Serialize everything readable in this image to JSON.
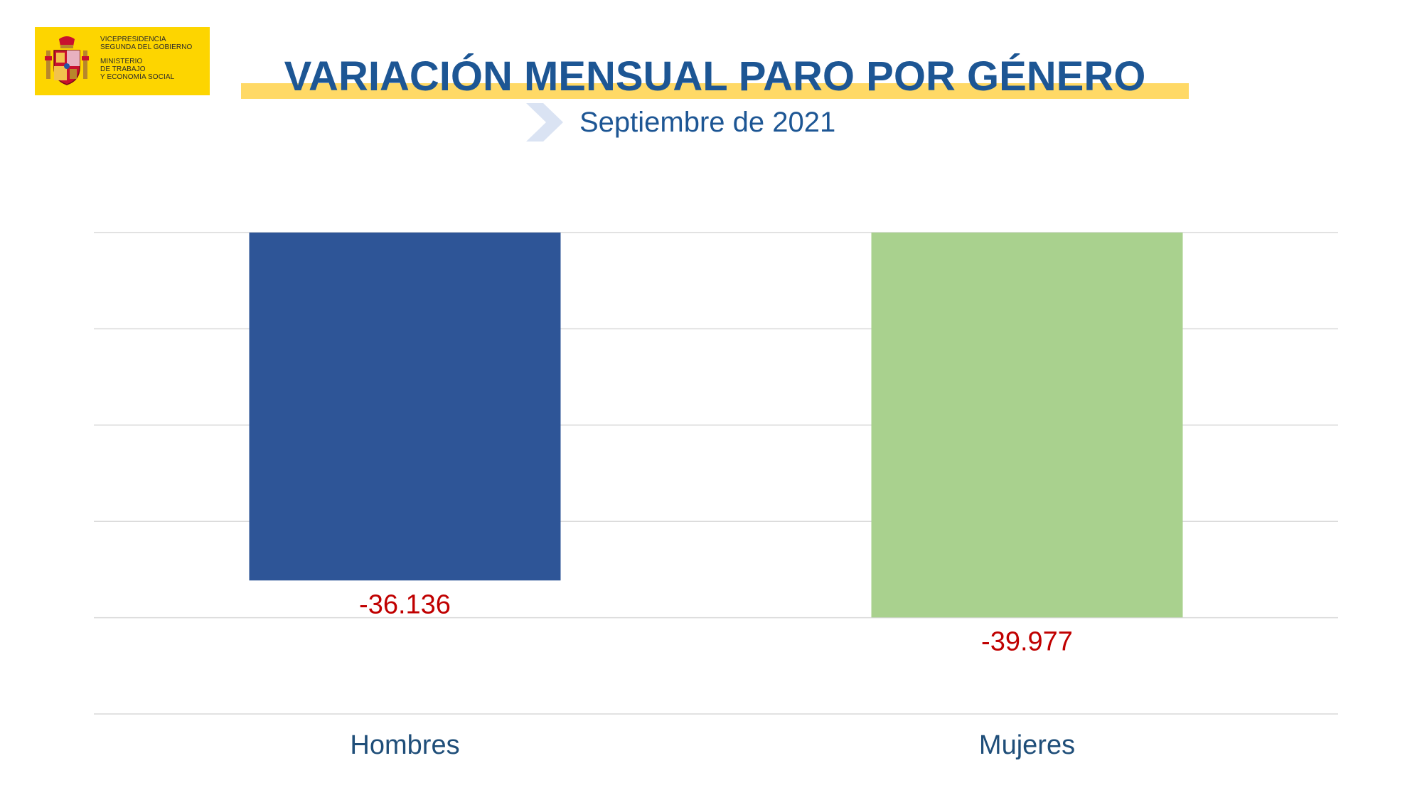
{
  "header": {
    "logo": {
      "lines": [
        "Vicepresidencia",
        "Segunda del Gobierno",
        "Ministerio",
        "de Trabajo",
        "y Economía Social"
      ],
      "background": "#fdd500"
    },
    "title": "VARIACIÓN MENSUAL PARO POR GÉNERO",
    "subtitle": "Septiembre de 2021"
  },
  "colors": {
    "title": "#1d5694",
    "highlight": "#ffd966",
    "hombres_bar": "#2e5597",
    "mujeres_bar": "#a9d18e",
    "value_label": "#c00000",
    "category_label": "#1f4e79"
  },
  "chart_data": {
    "type": "bar",
    "categories": [
      "Hombres",
      "Mujeres"
    ],
    "values": [
      -36136,
      -39977
    ],
    "value_labels": [
      "-36.136",
      "-39.977"
    ],
    "ylim": [
      -50000,
      0
    ],
    "gridlines": [
      0,
      -10000,
      -20000,
      -30000,
      -40000,
      -50000
    ],
    "grid": true,
    "legend": "none"
  }
}
